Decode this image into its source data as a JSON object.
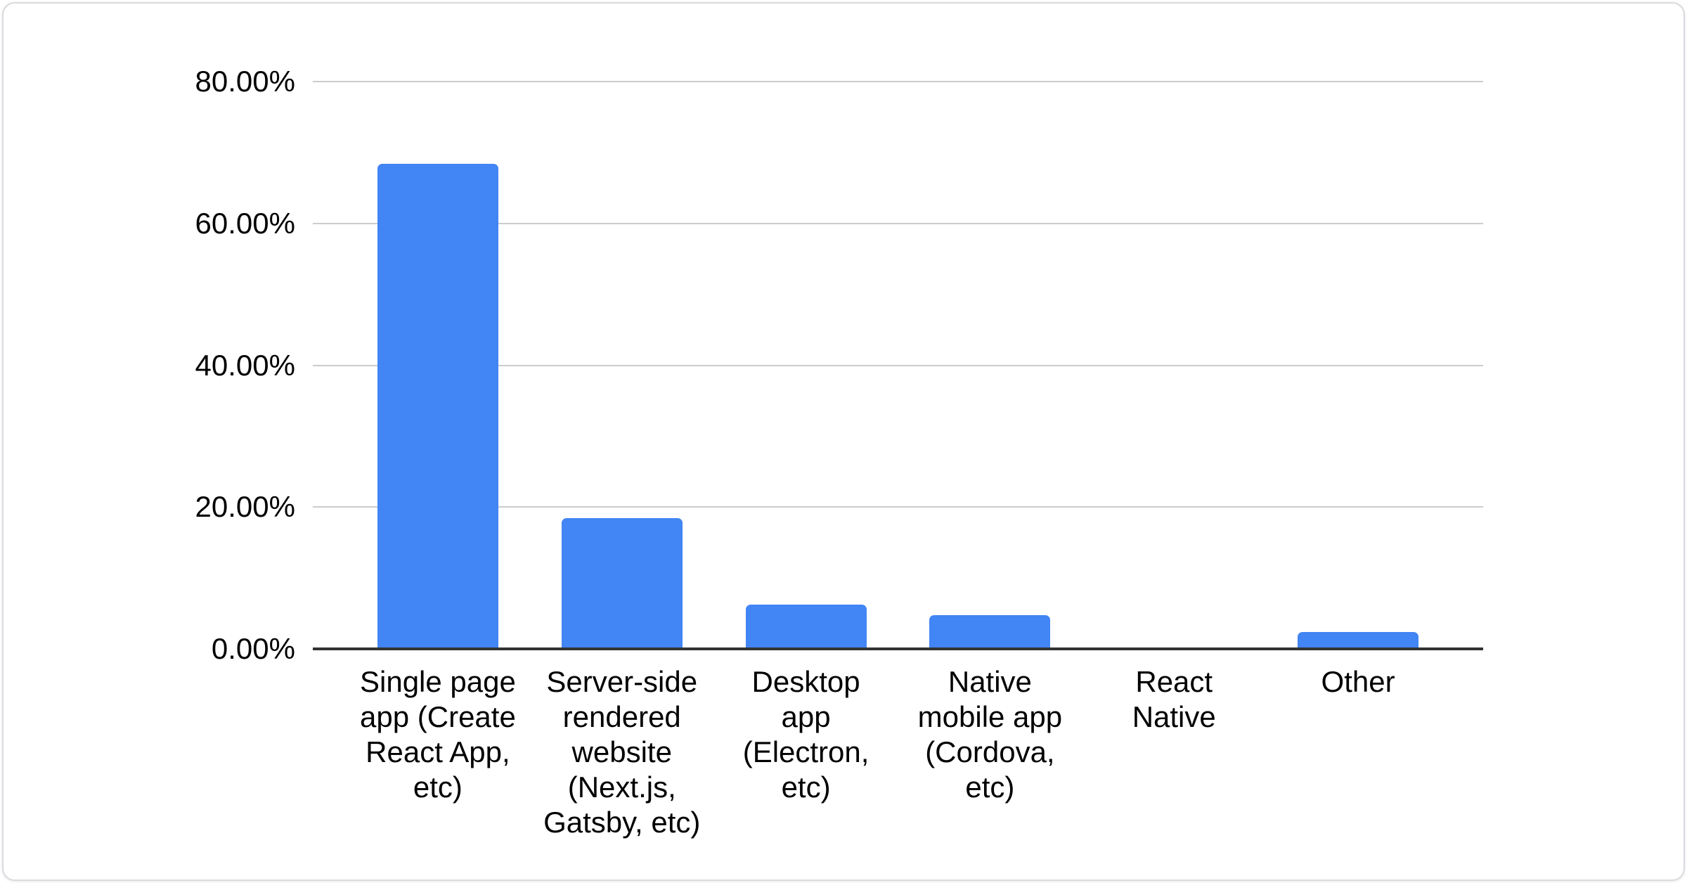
{
  "chart_data": {
    "type": "bar",
    "title": "",
    "xlabel": "",
    "ylabel": "",
    "unit": "%",
    "categories": [
      "Single page app (Create React App, etc)",
      "Server-side rendered website (Next.js, Gatsby, etc)",
      "Desktop app (Electron, etc)",
      "Native mobile app (Cordova, etc)",
      "React Native",
      "Other"
    ],
    "categories_wrapped": [
      "Single page\napp (Create\nReact App,\netc)",
      "Server-side\nrendered\nwebsite\n(Next.js,\nGatsby, etc)",
      "Desktop\napp\n(Electron,\netc)",
      "Native\nmobile app\n(Cordova,\netc)",
      "React\nNative",
      "Other"
    ],
    "values": [
      68.4,
      18.4,
      6.2,
      4.8,
      0,
      2.4
    ],
    "ylim": [
      0,
      80
    ],
    "ytick_interval": 20,
    "ytick_labels": [
      "80.00%",
      "60.00%",
      "40.00%",
      "20.00%",
      "0.00%"
    ],
    "grid": true,
    "legend": "none",
    "colors": {
      "bar": "#4285f4",
      "gridline": "#cccccc",
      "axis_line": "#333333",
      "text": "#000000",
      "card_border": "#d8dade",
      "card_background": "#ffffff"
    }
  }
}
